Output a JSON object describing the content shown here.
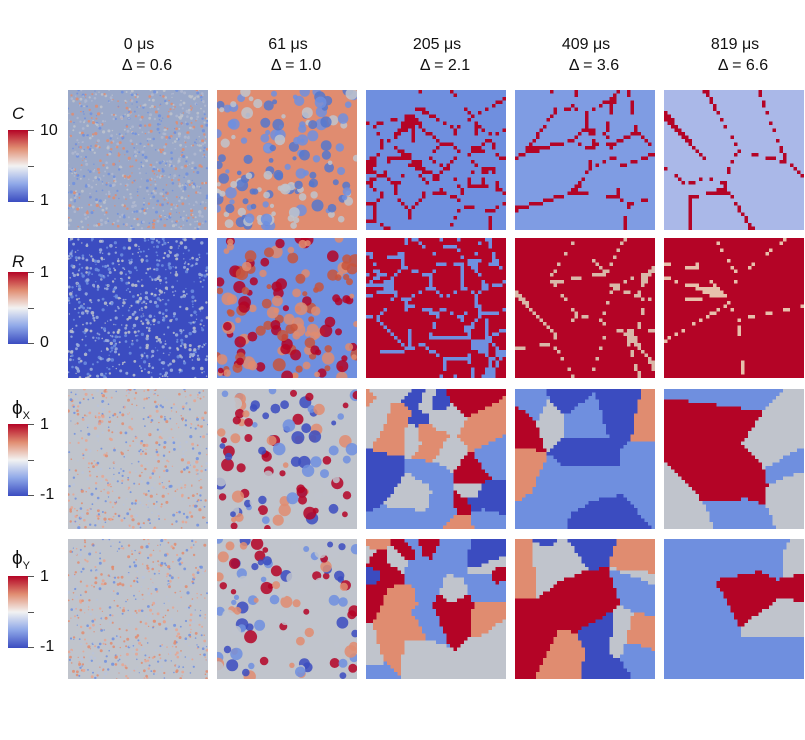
{
  "columns": [
    {
      "time": "0 μs",
      "delta": "Δ = 0.6"
    },
    {
      "time": "61 μs",
      "delta": "Δ = 1.0"
    },
    {
      "time": "205 μs",
      "delta": "Δ = 2.1"
    },
    {
      "time": "409 μs",
      "delta": "Δ = 3.6"
    },
    {
      "time": "819 μs",
      "delta": "Δ = 6.6"
    }
  ],
  "rows": [
    {
      "label": "C",
      "max": "10",
      "min": "1",
      "colormap": "blue-white-red"
    },
    {
      "label": "R",
      "max": "1",
      "min": "0",
      "colormap": "blue-white-red"
    },
    {
      "label": "ϕ",
      "subscript": "X",
      "max": "1",
      "min": "-1",
      "colormap": "blue-white-red"
    },
    {
      "label": "ϕ",
      "subscript": "Y",
      "max": "1",
      "min": "-1",
      "colormap": "blue-white-red"
    }
  ],
  "colors": {
    "deep_blue": "#3b4cc0",
    "mid_blue": "#6f8fdf",
    "neutral": "#c0c4cc",
    "light_red": "#e08c70",
    "deep_red": "#b40426"
  }
}
